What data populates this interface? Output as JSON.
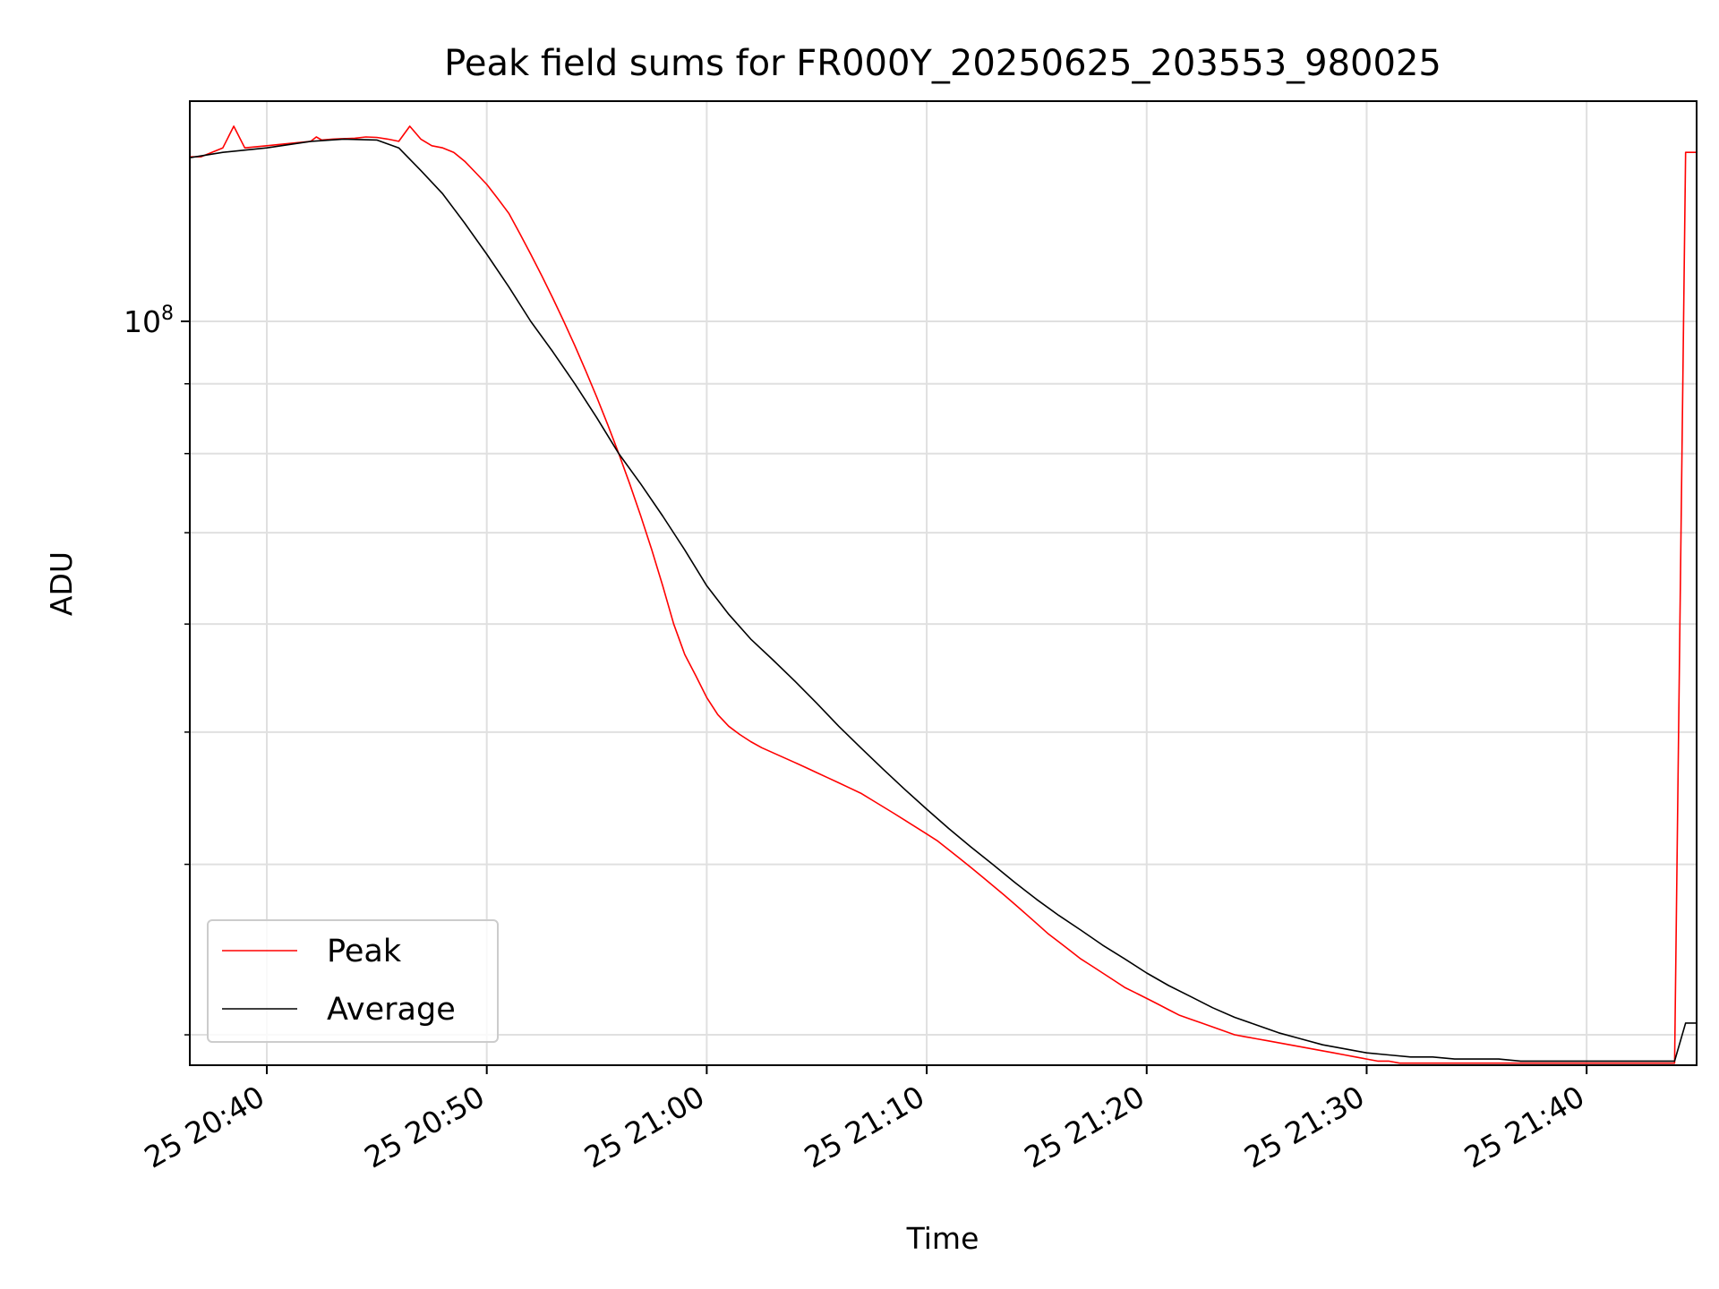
{
  "chart_data": {
    "type": "line",
    "title": "Peak field sums for FR000Y_20250625_203553_980025",
    "xlabel": "Time",
    "ylabel": "ADU",
    "x_axis": {
      "type": "time",
      "range": [
        "2025-06-25 20:36:30",
        "2025-06-25 21:45:00"
      ],
      "ticks": [
        {
          "value": "2025-06-25 20:40",
          "label": "25 20:40"
        },
        {
          "value": "2025-06-25 20:50",
          "label": "25 20:50"
        },
        {
          "value": "2025-06-25 21:00",
          "label": "25 21:00"
        },
        {
          "value": "2025-06-25 21:10",
          "label": "25 21:10"
        },
        {
          "value": "2025-06-25 21:20",
          "label": "25 21:20"
        },
        {
          "value": "2025-06-25 21:30",
          "label": "25 21:30"
        },
        {
          "value": "2025-06-25 21:40",
          "label": "25 21:40"
        }
      ]
    },
    "y_axis": {
      "scale": "log",
      "range": [
        28500000,
        145000000
      ],
      "major_ticks": [
        {
          "value": 100000000,
          "base": "10",
          "exp": "8"
        }
      ],
      "minor_ticks": [
        30000000,
        40000000,
        50000000,
        60000000,
        70000000,
        80000000,
        90000000,
        200000000
      ]
    },
    "grid": true,
    "legend": {
      "position": "lower-left",
      "entries": [
        {
          "label": "Peak",
          "color": "#ff0000"
        },
        {
          "label": "Average",
          "color": "#000000"
        }
      ]
    },
    "series": [
      {
        "name": "Peak",
        "color": "#ff0000",
        "points": [
          [
            "20:36:30",
            132000000
          ],
          [
            "20:37:00",
            132000000
          ],
          [
            "20:37:30",
            133000000
          ],
          [
            "20:38:00",
            134000000
          ],
          [
            "20:38:30",
            139000000
          ],
          [
            "20:39:00",
            134000000
          ],
          [
            "20:40:00",
            134500000
          ],
          [
            "20:41:00",
            135000000
          ],
          [
            "20:42:00",
            135500000
          ],
          [
            "20:42:15",
            136500000
          ],
          [
            "20:42:30",
            135800000
          ],
          [
            "20:43:00",
            136000000
          ],
          [
            "20:44:00",
            136200000
          ],
          [
            "20:44:30",
            136500000
          ],
          [
            "20:45:00",
            136400000
          ],
          [
            "20:45:30",
            136000000
          ],
          [
            "20:46:00",
            135500000
          ],
          [
            "20:46:30",
            139000000
          ],
          [
            "20:47:00",
            136000000
          ],
          [
            "20:47:30",
            134500000
          ],
          [
            "20:48:00",
            134000000
          ],
          [
            "20:48:30",
            133000000
          ],
          [
            "20:49:00",
            131000000
          ],
          [
            "20:49:30",
            128500000
          ],
          [
            "20:50:00",
            126000000
          ],
          [
            "20:50:30",
            123000000
          ],
          [
            "20:51:00",
            120000000
          ],
          [
            "20:51:30",
            116000000
          ],
          [
            "20:52:00",
            112000000
          ],
          [
            "20:52:30",
            108000000
          ],
          [
            "20:53:00",
            104000000
          ],
          [
            "20:53:30",
            100000000
          ],
          [
            "20:54:00",
            96000000
          ],
          [
            "20:54:30",
            92000000
          ],
          [
            "20:55:00",
            88000000
          ],
          [
            "20:55:30",
            84000000
          ],
          [
            "20:56:00",
            80000000
          ],
          [
            "20:56:30",
            76000000
          ],
          [
            "20:57:00",
            72000000
          ],
          [
            "20:57:30",
            68000000
          ],
          [
            "20:58:00",
            64000000
          ],
          [
            "20:58:30",
            60000000
          ],
          [
            "20:59:00",
            57000000
          ],
          [
            "20:59:30",
            55000000
          ],
          [
            "21:00:00",
            53000000
          ],
          [
            "21:00:30",
            51500000
          ],
          [
            "21:01:00",
            50500000
          ],
          [
            "21:01:30",
            49800000
          ],
          [
            "21:02:00",
            49200000
          ],
          [
            "21:02:30",
            48700000
          ],
          [
            "21:03:00",
            48300000
          ],
          [
            "21:03:30",
            47900000
          ],
          [
            "21:04:00",
            47500000
          ],
          [
            "21:04:30",
            47100000
          ],
          [
            "21:05:00",
            46700000
          ],
          [
            "21:05:30",
            46300000
          ],
          [
            "21:06:00",
            45900000
          ],
          [
            "21:06:30",
            45500000
          ],
          [
            "21:07:00",
            45100000
          ],
          [
            "21:07:30",
            44600000
          ],
          [
            "21:08:00",
            44100000
          ],
          [
            "21:08:30",
            43600000
          ],
          [
            "21:09:00",
            43100000
          ],
          [
            "21:09:30",
            42600000
          ],
          [
            "21:10:00",
            42100000
          ],
          [
            "21:10:30",
            41600000
          ],
          [
            "21:11:00",
            41000000
          ],
          [
            "21:11:30",
            40400000
          ],
          [
            "21:12:00",
            39800000
          ],
          [
            "21:12:30",
            39200000
          ],
          [
            "21:13:00",
            38600000
          ],
          [
            "21:13:30",
            38000000
          ],
          [
            "21:14:00",
            37400000
          ],
          [
            "21:14:30",
            36800000
          ],
          [
            "21:15:00",
            36200000
          ],
          [
            "21:15:30",
            35600000
          ],
          [
            "21:16:00",
            35100000
          ],
          [
            "21:16:30",
            34600000
          ],
          [
            "21:17:00",
            34100000
          ],
          [
            "21:17:30",
            33700000
          ],
          [
            "21:18:00",
            33300000
          ],
          [
            "21:18:30",
            32900000
          ],
          [
            "21:19:00",
            32500000
          ],
          [
            "21:19:30",
            32200000
          ],
          [
            "21:20:00",
            31900000
          ],
          [
            "21:20:30",
            31600000
          ],
          [
            "21:21:00",
            31300000
          ],
          [
            "21:21:30",
            31000000
          ],
          [
            "21:22:00",
            30800000
          ],
          [
            "21:22:30",
            30600000
          ],
          [
            "21:23:00",
            30400000
          ],
          [
            "21:23:30",
            30200000
          ],
          [
            "21:24:00",
            30000000
          ],
          [
            "21:24:30",
            29900000
          ],
          [
            "21:25:00",
            29800000
          ],
          [
            "21:25:30",
            29700000
          ],
          [
            "21:26:00",
            29600000
          ],
          [
            "21:26:30",
            29500000
          ],
          [
            "21:27:00",
            29400000
          ],
          [
            "21:27:30",
            29300000
          ],
          [
            "21:28:00",
            29200000
          ],
          [
            "21:28:30",
            29100000
          ],
          [
            "21:29:00",
            29000000
          ],
          [
            "21:29:30",
            28900000
          ],
          [
            "21:30:00",
            28800000
          ],
          [
            "21:30:30",
            28700000
          ],
          [
            "21:31:00",
            28700000
          ],
          [
            "21:31:30",
            28600000
          ],
          [
            "21:32:00",
            28600000
          ],
          [
            "21:32:30",
            28600000
          ],
          [
            "21:33:00",
            28600000
          ],
          [
            "21:33:30",
            28600000
          ],
          [
            "21:34:00",
            28600000
          ],
          [
            "21:34:30",
            28600000
          ],
          [
            "21:35:00",
            28600000
          ],
          [
            "21:35:30",
            28600000
          ],
          [
            "21:36:00",
            28600000
          ],
          [
            "21:36:30",
            28600000
          ],
          [
            "21:37:00",
            28600000
          ],
          [
            "21:37:30",
            28600000
          ],
          [
            "21:38:00",
            28600000
          ],
          [
            "21:38:30",
            28600000
          ],
          [
            "21:39:00",
            28600000
          ],
          [
            "21:39:30",
            28600000
          ],
          [
            "21:40:00",
            28600000
          ],
          [
            "21:40:30",
            28600000
          ],
          [
            "21:41:00",
            28600000
          ],
          [
            "21:41:30",
            28600000
          ],
          [
            "21:42:00",
            28600000
          ],
          [
            "21:42:30",
            28600000
          ],
          [
            "21:43:00",
            28600000
          ],
          [
            "21:43:30",
            28600000
          ],
          [
            "21:44:00",
            28600000
          ],
          [
            "21:44:30",
            133000000
          ],
          [
            "21:45:00",
            133000000
          ]
        ]
      },
      {
        "name": "Average",
        "color": "#000000",
        "points": [
          [
            "20:36:30",
            131800000
          ],
          [
            "20:38:00",
            133000000
          ],
          [
            "20:40:00",
            134000000
          ],
          [
            "20:42:00",
            135500000
          ],
          [
            "20:43:30",
            136000000
          ],
          [
            "20:45:00",
            135800000
          ],
          [
            "20:46:00",
            134000000
          ],
          [
            "20:47:00",
            129000000
          ],
          [
            "20:48:00",
            124000000
          ],
          [
            "20:49:00",
            118000000
          ],
          [
            "20:50:00",
            112000000
          ],
          [
            "20:51:00",
            106000000
          ],
          [
            "20:52:00",
            100000000
          ],
          [
            "20:53:00",
            95000000
          ],
          [
            "20:54:00",
            90000000
          ],
          [
            "20:55:00",
            85000000
          ],
          [
            "20:56:00",
            80000000
          ],
          [
            "20:57:00",
            76000000
          ],
          [
            "20:58:00",
            72000000
          ],
          [
            "20:59:00",
            68000000
          ],
          [
            "21:00:00",
            64000000
          ],
          [
            "21:01:00",
            61000000
          ],
          [
            "21:02:00",
            58500000
          ],
          [
            "21:03:00",
            56500000
          ],
          [
            "21:04:00",
            54500000
          ],
          [
            "21:05:00",
            52500000
          ],
          [
            "21:06:00",
            50500000
          ],
          [
            "21:07:00",
            48700000
          ],
          [
            "21:08:00",
            47000000
          ],
          [
            "21:09:00",
            45400000
          ],
          [
            "21:10:00",
            43900000
          ],
          [
            "21:11:00",
            42500000
          ],
          [
            "21:12:00",
            41200000
          ],
          [
            "21:13:00",
            40000000
          ],
          [
            "21:14:00",
            38800000
          ],
          [
            "21:15:00",
            37700000
          ],
          [
            "21:16:00",
            36700000
          ],
          [
            "21:17:00",
            35800000
          ],
          [
            "21:18:00",
            34900000
          ],
          [
            "21:19:00",
            34100000
          ],
          [
            "21:20:00",
            33300000
          ],
          [
            "21:21:00",
            32600000
          ],
          [
            "21:22:00",
            32000000
          ],
          [
            "21:23:00",
            31400000
          ],
          [
            "21:24:00",
            30900000
          ],
          [
            "21:25:00",
            30500000
          ],
          [
            "21:26:00",
            30100000
          ],
          [
            "21:27:00",
            29800000
          ],
          [
            "21:28:00",
            29500000
          ],
          [
            "21:29:00",
            29300000
          ],
          [
            "21:30:00",
            29100000
          ],
          [
            "21:31:00",
            29000000
          ],
          [
            "21:32:00",
            28900000
          ],
          [
            "21:33:00",
            28900000
          ],
          [
            "21:34:00",
            28800000
          ],
          [
            "21:35:00",
            28800000
          ],
          [
            "21:36:00",
            28800000
          ],
          [
            "21:37:00",
            28700000
          ],
          [
            "21:38:00",
            28700000
          ],
          [
            "21:39:00",
            28700000
          ],
          [
            "21:40:00",
            28700000
          ],
          [
            "21:41:00",
            28700000
          ],
          [
            "21:42:00",
            28700000
          ],
          [
            "21:43:00",
            28700000
          ],
          [
            "21:44:00",
            28700000
          ],
          [
            "21:44:30",
            30600000
          ],
          [
            "21:45:00",
            30600000
          ]
        ]
      }
    ]
  }
}
